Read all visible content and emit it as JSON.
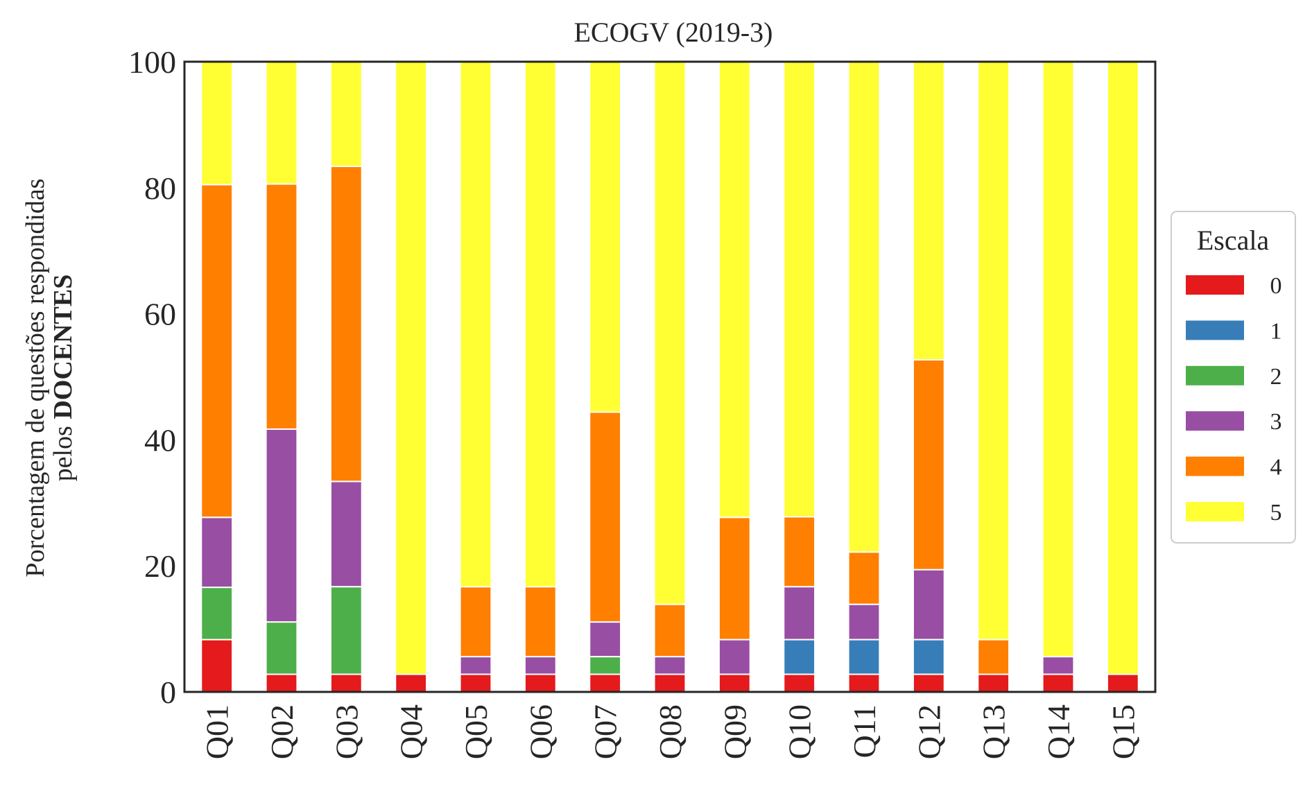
{
  "chart_data": {
    "type": "bar",
    "stacked": true,
    "title": "ECOGV (2019-3)",
    "ylabel_prefix": "Porcentagem de questões respondidas",
    "ylabel_line2_plain": "pelos ",
    "ylabel_line2_bold": "DOCENTES",
    "xlabel": "",
    "ylim": [
      0,
      100
    ],
    "yticks": [
      0,
      20,
      40,
      60,
      80,
      100
    ],
    "grid": false,
    "legend_position": "right",
    "legend_title": "Escala",
    "categories": [
      "Q01",
      "Q02",
      "Q03",
      "Q04",
      "Q05",
      "Q06",
      "Q07",
      "Q08",
      "Q09",
      "Q10",
      "Q11",
      "Q12",
      "Q13",
      "Q14",
      "Q15"
    ],
    "series": [
      {
        "name": "0",
        "color": "#e41a1c",
        "values": [
          8.3,
          2.8,
          2.8,
          2.8,
          2.8,
          2.8,
          2.8,
          2.8,
          2.8,
          2.8,
          2.8,
          2.8,
          2.8,
          2.8,
          2.8
        ]
      },
      {
        "name": "1",
        "color": "#377eb8",
        "values": [
          0,
          0,
          0,
          0,
          0,
          0,
          0,
          0,
          0,
          5.5,
          5.5,
          5.5,
          0,
          0,
          0
        ]
      },
      {
        "name": "2",
        "color": "#4daf4a",
        "values": [
          8.3,
          8.3,
          13.9,
          0,
          0,
          0,
          2.8,
          0,
          0,
          0,
          0,
          0,
          0,
          0,
          0
        ]
      },
      {
        "name": "3",
        "color": "#984ea3",
        "values": [
          11.1,
          30.6,
          16.7,
          0,
          2.8,
          2.8,
          5.5,
          2.8,
          5.5,
          8.4,
          5.6,
          11.1,
          0,
          2.8,
          0
        ]
      },
      {
        "name": "4",
        "color": "#ff7f00",
        "values": [
          52.8,
          38.9,
          50.0,
          0,
          11.1,
          11.1,
          33.3,
          8.3,
          19.4,
          11.1,
          8.3,
          33.3,
          5.5,
          0,
          0
        ]
      },
      {
        "name": "5",
        "color": "#ffff33",
        "values": [
          19.5,
          19.4,
          16.6,
          97.2,
          83.3,
          83.3,
          55.6,
          86.1,
          72.3,
          72.2,
          77.8,
          47.3,
          91.7,
          94.4,
          97.2
        ]
      }
    ]
  }
}
